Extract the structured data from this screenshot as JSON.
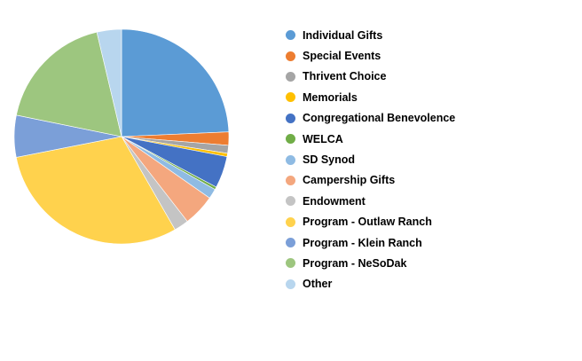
{
  "chart_data": {
    "type": "pie",
    "title": "",
    "legend_position": "right",
    "slices": [
      {
        "label": "Individual Gifts",
        "value": 24.3,
        "color": "#5b9bd5"
      },
      {
        "label": "Special Events",
        "value": 2.0,
        "color": "#ed7d31"
      },
      {
        "label": "Thrivent Choice",
        "value": 1.2,
        "color": "#a5a5a5"
      },
      {
        "label": "Memorials",
        "value": 0.5,
        "color": "#ffc000"
      },
      {
        "label": "Congregational Benevolence",
        "value": 4.8,
        "color": "#4472c4"
      },
      {
        "label": "WELCA",
        "value": 0.4,
        "color": "#70ad47"
      },
      {
        "label": "SD Synod",
        "value": 1.5,
        "color": "#8fbbe3"
      },
      {
        "label": "Campership Gifts",
        "value": 4.8,
        "color": "#f4a77e"
      },
      {
        "label": "Endowment",
        "value": 2.2,
        "color": "#c4c4c4"
      },
      {
        "label": "Program - Outlaw Ranch",
        "value": 30.2,
        "color": "#ffd24d"
      },
      {
        "label": "Program - Klein Ranch",
        "value": 6.3,
        "color": "#7b9fd8"
      },
      {
        "label": "Program - NeSoDak",
        "value": 18.1,
        "color": "#9dc67f"
      },
      {
        "label": "Other",
        "value": 3.7,
        "color": "#b8d6ee"
      }
    ]
  }
}
